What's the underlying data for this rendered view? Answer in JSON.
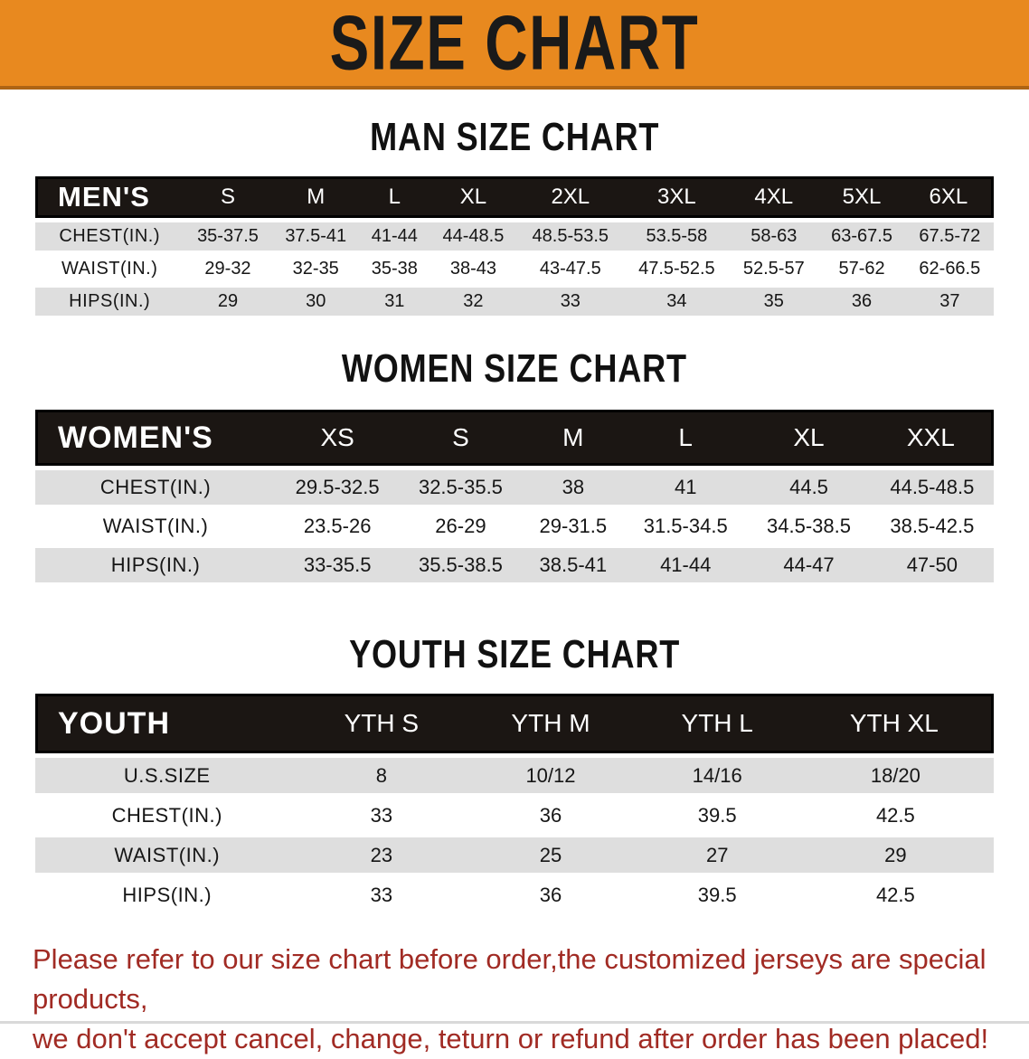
{
  "banner": {
    "title": "SIZE CHART",
    "background": "#E8891F",
    "title_color": "#1a1a1a"
  },
  "sections": [
    {
      "heading": "MAN SIZE CHART",
      "table": {
        "header_label": "MEN'S",
        "columns": [
          "S",
          "M",
          "L",
          "XL",
          "2XL",
          "3XL",
          "4XL",
          "5XL",
          "6XL"
        ],
        "rows": [
          {
            "label": "CHEST(IN.)",
            "values": [
              "35-37.5",
              "37.5-41",
              "41-44",
              "44-48.5",
              "48.5-53.5",
              "53.5-58",
              "58-63",
              "63-67.5",
              "67.5-72"
            ]
          },
          {
            "label": "WAIST(IN.)",
            "values": [
              "29-32",
              "32-35",
              "35-38",
              "38-43",
              "43-47.5",
              "47.5-52.5",
              "52.5-57",
              "57-62",
              "62-66.5"
            ]
          },
          {
            "label": "HIPS(IN.)",
            "values": [
              "29",
              "30",
              "31",
              "32",
              "33",
              "34",
              "35",
              "36",
              "37"
            ]
          }
        ]
      }
    },
    {
      "heading": "WOMEN SIZE CHART",
      "table": {
        "header_label": "WOMEN'S",
        "columns": [
          "XS",
          "S",
          "M",
          "L",
          "XL",
          "XXL"
        ],
        "rows": [
          {
            "label": "CHEST(IN.)",
            "values": [
              "29.5-32.5",
              "32.5-35.5",
              "38",
              "41",
              "44.5",
              "44.5-48.5"
            ]
          },
          {
            "label": "WAIST(IN.)",
            "values": [
              "23.5-26",
              "26-29",
              "29-31.5",
              "31.5-34.5",
              "34.5-38.5",
              "38.5-42.5"
            ]
          },
          {
            "label": "HIPS(IN.)",
            "values": [
              "33-35.5",
              "35.5-38.5",
              "38.5-41",
              "41-44",
              "44-47",
              "47-50"
            ]
          }
        ]
      }
    },
    {
      "heading": "YOUTH SIZE CHART",
      "table": {
        "header_label": "YOUTH",
        "columns": [
          "YTH S",
          "YTH M",
          "YTH L",
          "YTH XL"
        ],
        "rows": [
          {
            "label": "U.S.SIZE",
            "values": [
              "8",
              "10/12",
              "14/16",
              "18/20"
            ]
          },
          {
            "label": "CHEST(IN.)",
            "values": [
              "33",
              "36",
              "39.5",
              "42.5"
            ]
          },
          {
            "label": "WAIST(IN.)",
            "values": [
              "23",
              "25",
              "27",
              "29"
            ]
          },
          {
            "label": "HIPS(IN.)",
            "values": [
              "33",
              "36",
              "39.5",
              "42.5"
            ]
          }
        ]
      }
    }
  ],
  "footnote": {
    "line1": "Please refer to our size chart before order,the customized jerseys are special products,",
    "line2": "we don't accept cancel, change, teturn or refund after order has been placed!",
    "color": "#A12B24"
  },
  "colors": {
    "banner_orange": "#E8891F",
    "banner_edge": "#AE6414",
    "table_header_bar": "#1B1613",
    "row_gray": "#DEDEDE",
    "row_white": "#FFFFFF",
    "footnote_red": "#A12B24"
  }
}
